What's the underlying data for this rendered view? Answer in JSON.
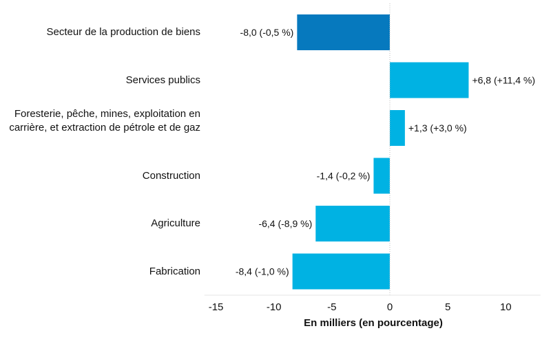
{
  "chart_data": {
    "type": "bar",
    "orientation": "horizontal",
    "categories": [
      "Secteur de la production de biens",
      "Services publics",
      "Foresterie, pêche, mines, exploitation en carrière, et extraction de pétrole et de gaz",
      "Construction",
      "Agriculture",
      "Fabrication"
    ],
    "values": [
      -8.0,
      6.8,
      1.3,
      -1.4,
      -6.4,
      -8.4
    ],
    "data_labels": [
      "-8,0 (-0,5 %)",
      "+6,8 (+11,4 %)",
      "+1,3 (+3,0 %)",
      "-1,4 (-0,2 %)",
      "-6,4 (-8,9 %)",
      "-8,4 (-1,0 %)"
    ],
    "bar_colors": [
      "#0679be",
      "#00b2e3",
      "#00b2e3",
      "#00b2e3",
      "#00b2e3",
      "#00b2e3"
    ],
    "xlabel": "En milliers (en pourcentage)",
    "ylabel": "",
    "xlim": [
      -16,
      13
    ],
    "xticks": [
      -15,
      -10,
      -5,
      0,
      5,
      10
    ],
    "xtick_labels": [
      "-15",
      "-10",
      "-5",
      "0",
      "5",
      "10"
    ],
    "grid": false,
    "zero_line": "dotted"
  }
}
